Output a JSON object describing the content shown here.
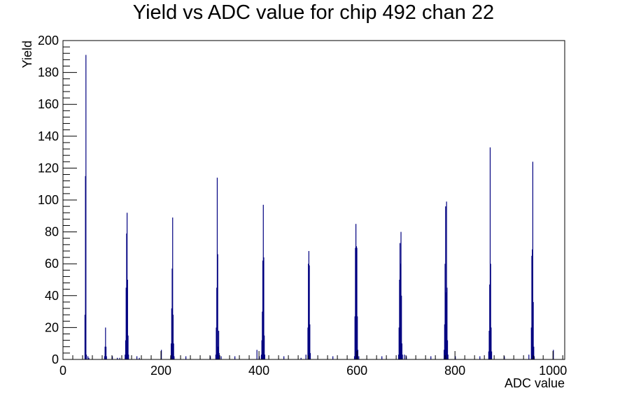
{
  "chart_data": {
    "type": "bar",
    "title": "Yield vs ADC value for chip 492 chan 22",
    "xlabel": "ADC value",
    "ylabel": "Yield",
    "xlim": [
      0,
      1024
    ],
    "ylim": [
      0,
      200
    ],
    "xticks": [
      0,
      200,
      400,
      600,
      800,
      1000
    ],
    "yticks": [
      0,
      20,
      40,
      60,
      80,
      100,
      120,
      140,
      160,
      180,
      200
    ],
    "bin_width": 1,
    "grid": false,
    "legend": "none",
    "series_color": "#000080",
    "bins": [
      {
        "x": 44,
        "y": 28
      },
      {
        "x": 45,
        "y": 115
      },
      {
        "x": 46,
        "y": 191
      },
      {
        "x": 47,
        "y": 3
      },
      {
        "x": 50,
        "y": 2
      },
      {
        "x": 52,
        "y": 1
      },
      {
        "x": 84,
        "y": 2
      },
      {
        "x": 85,
        "y": 8
      },
      {
        "x": 86,
        "y": 20
      },
      {
        "x": 87,
        "y": 8
      },
      {
        "x": 88,
        "y": 2
      },
      {
        "x": 100,
        "y": 2
      },
      {
        "x": 110,
        "y": 1
      },
      {
        "x": 115,
        "y": 1
      },
      {
        "x": 126,
        "y": 3
      },
      {
        "x": 127,
        "y": 12
      },
      {
        "x": 128,
        "y": 45
      },
      {
        "x": 129,
        "y": 79
      },
      {
        "x": 130,
        "y": 92
      },
      {
        "x": 131,
        "y": 50
      },
      {
        "x": 132,
        "y": 15
      },
      {
        "x": 133,
        "y": 3
      },
      {
        "x": 150,
        "y": 2
      },
      {
        "x": 155,
        "y": 1
      },
      {
        "x": 200,
        "y": 6
      },
      {
        "x": 219,
        "y": 2
      },
      {
        "x": 220,
        "y": 10
      },
      {
        "x": 221,
        "y": 32
      },
      {
        "x": 222,
        "y": 57
      },
      {
        "x": 223,
        "y": 89
      },
      {
        "x": 224,
        "y": 28
      },
      {
        "x": 225,
        "y": 10
      },
      {
        "x": 226,
        "y": 2
      },
      {
        "x": 250,
        "y": 2
      },
      {
        "x": 300,
        "y": 2
      },
      {
        "x": 311,
        "y": 3
      },
      {
        "x": 312,
        "y": 20
      },
      {
        "x": 313,
        "y": 45
      },
      {
        "x": 314,
        "y": 114
      },
      {
        "x": 315,
        "y": 66
      },
      {
        "x": 316,
        "y": 8
      },
      {
        "x": 317,
        "y": 18
      },
      {
        "x": 318,
        "y": 4
      },
      {
        "x": 322,
        "y": 2
      },
      {
        "x": 350,
        "y": 2
      },
      {
        "x": 395,
        "y": 6
      },
      {
        "x": 400,
        "y": 2
      },
      {
        "x": 404,
        "y": 3
      },
      {
        "x": 405,
        "y": 12
      },
      {
        "x": 406,
        "y": 30
      },
      {
        "x": 407,
        "y": 62
      },
      {
        "x": 408,
        "y": 97
      },
      {
        "x": 409,
        "y": 64
      },
      {
        "x": 410,
        "y": 15
      },
      {
        "x": 411,
        "y": 3
      },
      {
        "x": 450,
        "y": 2
      },
      {
        "x": 485,
        "y": 1
      },
      {
        "x": 495,
        "y": 3
      },
      {
        "x": 499,
        "y": 20
      },
      {
        "x": 500,
        "y": 60
      },
      {
        "x": 501,
        "y": 68
      },
      {
        "x": 502,
        "y": 59
      },
      {
        "x": 503,
        "y": 22
      },
      {
        "x": 504,
        "y": 4
      },
      {
        "x": 550,
        "y": 2
      },
      {
        "x": 594,
        "y": 2
      },
      {
        "x": 595,
        "y": 27
      },
      {
        "x": 596,
        "y": 70
      },
      {
        "x": 597,
        "y": 85
      },
      {
        "x": 598,
        "y": 71
      },
      {
        "x": 599,
        "y": 70
      },
      {
        "x": 600,
        "y": 27
      },
      {
        "x": 601,
        "y": 6
      },
      {
        "x": 603,
        "y": 2
      },
      {
        "x": 650,
        "y": 2
      },
      {
        "x": 684,
        "y": 3
      },
      {
        "x": 685,
        "y": 20
      },
      {
        "x": 686,
        "y": 50
      },
      {
        "x": 687,
        "y": 73
      },
      {
        "x": 688,
        "y": 60
      },
      {
        "x": 689,
        "y": 80
      },
      {
        "x": 690,
        "y": 40
      },
      {
        "x": 691,
        "y": 10
      },
      {
        "x": 692,
        "y": 3
      },
      {
        "x": 696,
        "y": 3
      },
      {
        "x": 700,
        "y": 2
      },
      {
        "x": 750,
        "y": 2
      },
      {
        "x": 777,
        "y": 6
      },
      {
        "x": 778,
        "y": 22
      },
      {
        "x": 779,
        "y": 60
      },
      {
        "x": 780,
        "y": 96
      },
      {
        "x": 781,
        "y": 42
      },
      {
        "x": 782,
        "y": 99
      },
      {
        "x": 783,
        "y": 45
      },
      {
        "x": 784,
        "y": 12
      },
      {
        "x": 785,
        "y": 3
      },
      {
        "x": 800,
        "y": 2
      },
      {
        "x": 850,
        "y": 2
      },
      {
        "x": 868,
        "y": 5
      },
      {
        "x": 869,
        "y": 18
      },
      {
        "x": 870,
        "y": 47
      },
      {
        "x": 871,
        "y": 133
      },
      {
        "x": 872,
        "y": 60
      },
      {
        "x": 873,
        "y": 20
      },
      {
        "x": 874,
        "y": 5
      },
      {
        "x": 900,
        "y": 2
      },
      {
        "x": 950,
        "y": 3
      },
      {
        "x": 955,
        "y": 20
      },
      {
        "x": 956,
        "y": 65
      },
      {
        "x": 957,
        "y": 69
      },
      {
        "x": 958,
        "y": 124
      },
      {
        "x": 959,
        "y": 36
      },
      {
        "x": 960,
        "y": 8
      },
      {
        "x": 961,
        "y": 2
      },
      {
        "x": 1000,
        "y": 6
      }
    ]
  }
}
